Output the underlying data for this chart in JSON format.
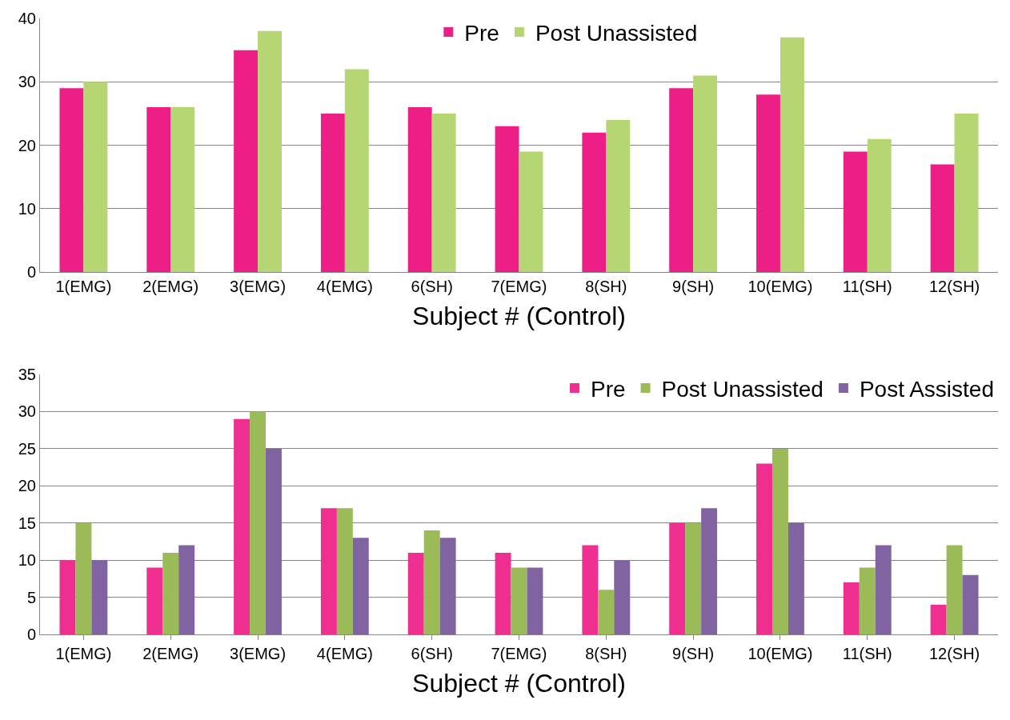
{
  "chart_data": [
    {
      "type": "bar",
      "xlabel": "Subject # (Control)",
      "categories": [
        "1(EMG)",
        "2(EMG)",
        "3(EMG)",
        "4(EMG)",
        "6(SH)",
        "7(EMG)",
        "8(SH)",
        "9(SH)",
        "10(EMG)",
        "11(SH)",
        "12(SH)"
      ],
      "series": [
        {
          "name": "Pre",
          "color": "#ed1e86",
          "values": [
            29,
            26,
            35,
            25,
            26,
            23,
            22,
            29,
            28,
            19,
            17
          ]
        },
        {
          "name": "Post Unassisted",
          "color": "#b5d672",
          "values": [
            30,
            26,
            38,
            32,
            25,
            19,
            24,
            31,
            37,
            21,
            25
          ]
        }
      ],
      "ylim": [
        0,
        40
      ],
      "yticks": [
        0,
        10,
        20,
        30,
        40
      ],
      "grid": "y",
      "legend": "top"
    },
    {
      "type": "bar",
      "xlabel": "Subject # (Control)",
      "categories": [
        "1(EMG)",
        "2(EMG)",
        "3(EMG)",
        "4(EMG)",
        "6(SH)",
        "7(EMG)",
        "8(SH)",
        "9(SH)",
        "10(EMG)",
        "11(SH)",
        "12(SH)"
      ],
      "series": [
        {
          "name": "Pre",
          "color": "#ee2f8f",
          "values": [
            10,
            9,
            29,
            17,
            11,
            11,
            12,
            15,
            23,
            7,
            4
          ]
        },
        {
          "name": "Post Unassisted",
          "color": "#9bbb59",
          "values": [
            15,
            11,
            30,
            17,
            14,
            9,
            6,
            15,
            25,
            9,
            12
          ]
        },
        {
          "name": "Post Assisted",
          "color": "#8064a2",
          "values": [
            10,
            12,
            25,
            13,
            13,
            9,
            10,
            17,
            15,
            12,
            8
          ]
        }
      ],
      "ylim": [
        0,
        35
      ],
      "yticks": [
        0,
        5,
        10,
        15,
        20,
        25,
        30,
        35
      ],
      "grid": "y",
      "legend": "top right"
    }
  ]
}
